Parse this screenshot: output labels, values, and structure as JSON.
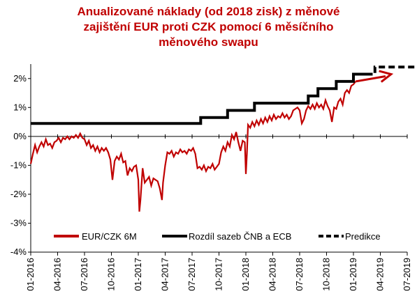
{
  "chart_data": {
    "type": "line",
    "title_lines": [
      "Anualizované náklady (od 2018 zisk) z měnové",
      "zajištění EUR proti CZK pomocí 6 měsíčního",
      "měnového swapu"
    ],
    "x_ticks": [
      "01-2016",
      "04-2016",
      "07-2016",
      "10-2016",
      "01-2017",
      "04-2017",
      "07-2017",
      "10-2017",
      "01-2018",
      "04-2018",
      "07-2018",
      "10-2018",
      "01-2019",
      "04-2019",
      "07-2019"
    ],
    "y_ticks": [
      "2%",
      "1%",
      "0%",
      "-1%",
      "-2%",
      "-3%",
      "-4%"
    ],
    "y_values": [
      2,
      1,
      0,
      -1,
      -2,
      -3,
      -4
    ],
    "ylim": [
      -4,
      2.5
    ],
    "xlim": [
      "2016-01",
      "2019-07"
    ],
    "series": [
      {
        "name": "EUR/CZK 6M",
        "color": "#c00000",
        "style": "solid",
        "points": [
          [
            2016.0,
            -0.95
          ],
          [
            2016.02,
            -0.6
          ],
          [
            2016.04,
            -0.3
          ],
          [
            2016.06,
            -0.55
          ],
          [
            2016.08,
            -0.35
          ],
          [
            2016.1,
            -0.2
          ],
          [
            2016.12,
            -0.35
          ],
          [
            2016.14,
            -0.1
          ],
          [
            2016.16,
            -0.3
          ],
          [
            2016.18,
            -0.25
          ],
          [
            2016.2,
            -0.4
          ],
          [
            2016.22,
            -0.2
          ],
          [
            2016.24,
            -0.15
          ],
          [
            2016.26,
            -0.05
          ],
          [
            2016.28,
            -0.2
          ],
          [
            2016.3,
            -0.05
          ],
          [
            2016.32,
            -0.1
          ],
          [
            2016.34,
            0.0
          ],
          [
            2016.36,
            -0.1
          ],
          [
            2016.38,
            0.0
          ],
          [
            2016.4,
            -0.05
          ],
          [
            2016.42,
            0.05
          ],
          [
            2016.44,
            -0.05
          ],
          [
            2016.46,
            0.1
          ],
          [
            2016.48,
            -0.05
          ],
          [
            2016.5,
            -0.1
          ],
          [
            2016.52,
            -0.3
          ],
          [
            2016.54,
            -0.15
          ],
          [
            2016.56,
            -0.4
          ],
          [
            2016.58,
            -0.3
          ],
          [
            2016.6,
            -0.5
          ],
          [
            2016.62,
            -0.35
          ],
          [
            2016.64,
            -0.55
          ],
          [
            2016.66,
            -0.4
          ],
          [
            2016.68,
            -0.5
          ],
          [
            2016.7,
            -0.4
          ],
          [
            2016.72,
            -0.55
          ],
          [
            2016.74,
            -0.8
          ],
          [
            2016.76,
            -1.5
          ],
          [
            2016.78,
            -0.85
          ],
          [
            2016.8,
            -0.7
          ],
          [
            2016.82,
            -0.8
          ],
          [
            2016.84,
            -0.6
          ],
          [
            2016.86,
            -0.9
          ],
          [
            2016.88,
            -0.85
          ],
          [
            2016.9,
            -1.35
          ],
          [
            2016.92,
            -1.1
          ],
          [
            2016.94,
            -1.2
          ],
          [
            2016.96,
            -1.05
          ],
          [
            2016.98,
            -1.0
          ],
          [
            2017.0,
            -1.5
          ],
          [
            2017.01,
            -2.6
          ],
          [
            2017.02,
            -2.2
          ],
          [
            2017.04,
            -1.1
          ],
          [
            2017.06,
            -1.6
          ],
          [
            2017.08,
            -1.5
          ],
          [
            2017.1,
            -1.4
          ],
          [
            2017.12,
            -1.7
          ],
          [
            2017.14,
            -1.45
          ],
          [
            2017.16,
            -1.5
          ],
          [
            2017.18,
            -1.55
          ],
          [
            2017.2,
            -1.8
          ],
          [
            2017.22,
            -2.2
          ],
          [
            2017.23,
            -1.6
          ],
          [
            2017.25,
            -1.0
          ],
          [
            2017.27,
            -0.55
          ],
          [
            2017.29,
            -0.6
          ],
          [
            2017.31,
            -0.5
          ],
          [
            2017.33,
            -0.7
          ],
          [
            2017.35,
            -0.55
          ],
          [
            2017.37,
            -0.6
          ],
          [
            2017.39,
            -0.45
          ],
          [
            2017.41,
            -0.55
          ],
          [
            2017.43,
            -0.5
          ],
          [
            2017.45,
            -0.6
          ],
          [
            2017.47,
            -0.45
          ],
          [
            2017.49,
            -0.5
          ],
          [
            2017.51,
            -0.4
          ],
          [
            2017.53,
            -0.6
          ],
          [
            2017.55,
            -1.1
          ],
          [
            2017.57,
            -1.05
          ],
          [
            2017.59,
            -1.15
          ],
          [
            2017.61,
            -1.0
          ],
          [
            2017.63,
            -1.2
          ],
          [
            2017.65,
            -1.05
          ],
          [
            2017.67,
            -1.1
          ],
          [
            2017.69,
            -0.95
          ],
          [
            2017.71,
            -1.15
          ],
          [
            2017.73,
            -1.05
          ],
          [
            2017.75,
            -0.95
          ],
          [
            2017.77,
            -0.55
          ],
          [
            2017.79,
            -0.35
          ],
          [
            2017.81,
            -0.5
          ],
          [
            2017.83,
            -0.2
          ],
          [
            2017.85,
            -0.35
          ],
          [
            2017.87,
            0.05
          ],
          [
            2017.89,
            -0.1
          ],
          [
            2017.91,
            0.15
          ],
          [
            2017.93,
            -0.2
          ],
          [
            2017.95,
            -0.5
          ],
          [
            2017.97,
            -0.15
          ],
          [
            2017.99,
            -0.2
          ],
          [
            2018.0,
            -1.3
          ],
          [
            2018.01,
            -0.6
          ],
          [
            2018.02,
            0.4
          ],
          [
            2018.04,
            0.3
          ],
          [
            2018.06,
            0.5
          ],
          [
            2018.08,
            0.35
          ],
          [
            2018.1,
            0.55
          ],
          [
            2018.12,
            0.4
          ],
          [
            2018.14,
            0.6
          ],
          [
            2018.16,
            0.45
          ],
          [
            2018.18,
            0.65
          ],
          [
            2018.2,
            0.5
          ],
          [
            2018.22,
            0.7
          ],
          [
            2018.24,
            0.55
          ],
          [
            2018.26,
            0.75
          ],
          [
            2018.28,
            0.6
          ],
          [
            2018.3,
            0.7
          ],
          [
            2018.32,
            0.65
          ],
          [
            2018.34,
            0.8
          ],
          [
            2018.36,
            0.65
          ],
          [
            2018.38,
            0.75
          ],
          [
            2018.4,
            0.6
          ],
          [
            2018.42,
            0.7
          ],
          [
            2018.44,
            0.9
          ],
          [
            2018.46,
            0.95
          ],
          [
            2018.48,
            1.0
          ],
          [
            2018.5,
            0.9
          ],
          [
            2018.52,
            0.45
          ],
          [
            2018.54,
            0.6
          ],
          [
            2018.56,
            0.9
          ],
          [
            2018.58,
            1.05
          ],
          [
            2018.6,
            0.95
          ],
          [
            2018.62,
            1.1
          ],
          [
            2018.64,
            0.95
          ],
          [
            2018.66,
            1.15
          ],
          [
            2018.68,
            1.0
          ],
          [
            2018.7,
            1.1
          ],
          [
            2018.72,
            0.95
          ],
          [
            2018.74,
            1.25
          ],
          [
            2018.76,
            1.05
          ],
          [
            2018.78,
            0.9
          ],
          [
            2018.8,
            0.5
          ],
          [
            2018.82,
            1.0
          ],
          [
            2018.84,
            0.95
          ],
          [
            2018.86,
            1.2
          ],
          [
            2018.88,
            1.3
          ],
          [
            2018.9,
            1.1
          ],
          [
            2018.92,
            1.5
          ],
          [
            2018.94,
            1.6
          ],
          [
            2018.96,
            1.5
          ],
          [
            2018.98,
            1.75
          ],
          [
            2019.0,
            1.8
          ],
          [
            2019.02,
            1.9
          ]
        ]
      },
      {
        "name": "Rozdíl sazeb ČNB a ECB",
        "color": "#000000",
        "style": "solid",
        "points": [
          [
            2016.0,
            0.45
          ],
          [
            2017.58,
            0.45
          ],
          [
            2017.58,
            0.65
          ],
          [
            2017.83,
            0.65
          ],
          [
            2017.83,
            0.9
          ],
          [
            2018.08,
            0.9
          ],
          [
            2018.08,
            1.15
          ],
          [
            2018.58,
            1.15
          ],
          [
            2018.58,
            1.4
          ],
          [
            2018.67,
            1.4
          ],
          [
            2018.67,
            1.65
          ],
          [
            2018.84,
            1.65
          ],
          [
            2018.84,
            1.9
          ],
          [
            2019.0,
            1.9
          ],
          [
            2019.0,
            2.15
          ],
          [
            2019.12,
            2.15
          ]
        ]
      },
      {
        "name": "Predikce",
        "color": "#000000",
        "style": "dashed",
        "points": [
          [
            2019.12,
            2.15
          ],
          [
            2019.2,
            2.15
          ],
          [
            2019.2,
            2.4
          ],
          [
            2019.58,
            2.4
          ]
        ]
      }
    ],
    "annotation": {
      "type": "arrow",
      "color": "#c00000",
      "from": [
        2019.02,
        1.9
      ],
      "to": [
        2019.35,
        2.15
      ]
    },
    "legend": {
      "placement": "bottom-inside"
    }
  }
}
